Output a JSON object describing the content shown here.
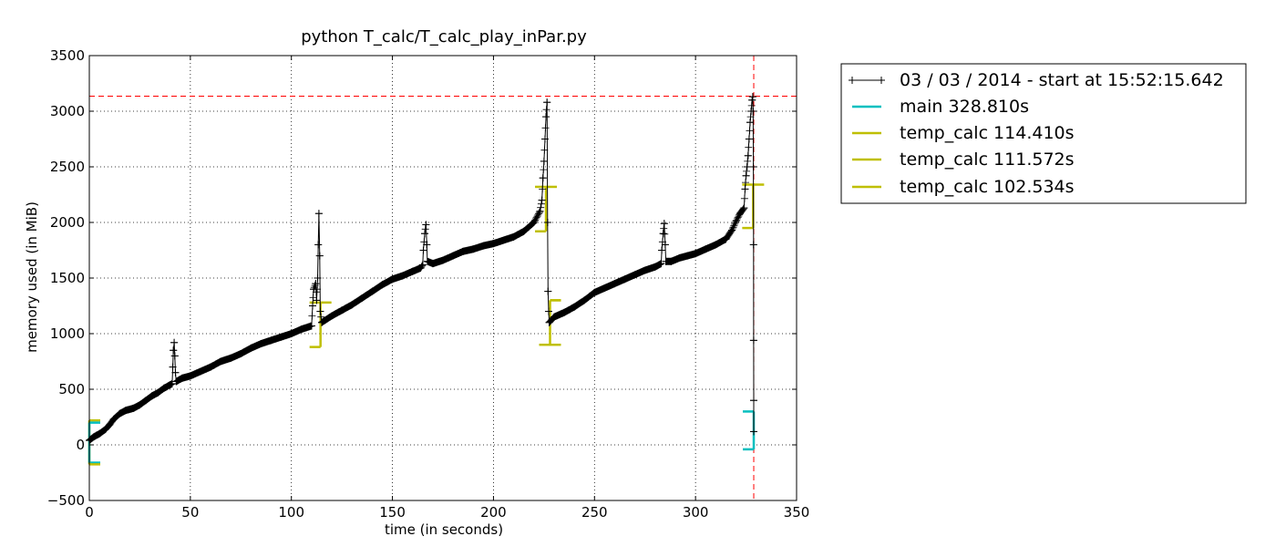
{
  "chart_data": {
    "type": "line",
    "title": "python T_calc/T_calc_play_inPar.py",
    "xlabel": "time (in seconds)",
    "ylabel": "memory used (in MiB)",
    "xlim": [
      0,
      350
    ],
    "ylim": [
      -500,
      3500
    ],
    "xticks": [
      0,
      50,
      100,
      150,
      200,
      250,
      300,
      350
    ],
    "xtick_labels": [
      "0",
      "50",
      "100",
      "150",
      "200",
      "250",
      "300",
      "350"
    ],
    "yticks": [
      -500,
      0,
      500,
      1000,
      1500,
      2000,
      2500,
      3000,
      3500
    ],
    "ytick_labels": [
      "−500",
      "0",
      "500",
      "1000",
      "1500",
      "2000",
      "2500",
      "3000",
      "3500"
    ],
    "grid": true,
    "legend_position": "outside-right-top",
    "colors": {
      "memory": "#000000",
      "main": "#00bfbf",
      "temp_calc": "#bfbf00",
      "peak": "#ff0000"
    },
    "series": [
      {
        "name": "03 / 03 / 2014 - start at 15:52:15.642",
        "marker": "+",
        "points": [
          [
            0,
            40
          ],
          [
            2,
            70
          ],
          [
            5,
            100
          ],
          [
            8,
            140
          ],
          [
            10,
            180
          ],
          [
            12,
            230
          ],
          [
            15,
            280
          ],
          [
            18,
            310
          ],
          [
            22,
            330
          ],
          [
            25,
            360
          ],
          [
            28,
            400
          ],
          [
            31,
            440
          ],
          [
            34,
            470
          ],
          [
            37,
            510
          ],
          [
            40,
            540
          ],
          [
            41,
            550
          ],
          [
            41.3,
            700
          ],
          [
            41.6,
            850
          ],
          [
            42,
            920
          ],
          [
            42.3,
            800
          ],
          [
            42.6,
            650
          ],
          [
            43,
            570
          ],
          [
            46,
            600
          ],
          [
            50,
            620
          ],
          [
            55,
            660
          ],
          [
            60,
            700
          ],
          [
            65,
            750
          ],
          [
            70,
            780
          ],
          [
            75,
            820
          ],
          [
            80,
            870
          ],
          [
            85,
            910
          ],
          [
            90,
            940
          ],
          [
            95,
            970
          ],
          [
            100,
            1000
          ],
          [
            105,
            1040
          ],
          [
            110,
            1070
          ],
          [
            110.5,
            1250
          ],
          [
            111,
            1400
          ],
          [
            112,
            1450
          ],
          [
            112.5,
            1300
          ],
          [
            113,
            1500
          ],
          [
            113.3,
            1800
          ],
          [
            113.6,
            2080
          ],
          [
            114,
            1700
          ],
          [
            114.3,
            1200
          ],
          [
            115,
            1100
          ],
          [
            120,
            1160
          ],
          [
            125,
            1210
          ],
          [
            130,
            1260
          ],
          [
            135,
            1320
          ],
          [
            140,
            1380
          ],
          [
            145,
            1440
          ],
          [
            150,
            1490
          ],
          [
            155,
            1520
          ],
          [
            160,
            1560
          ],
          [
            164,
            1590
          ],
          [
            165,
            1620
          ],
          [
            165.3,
            1750
          ],
          [
            166,
            1900
          ],
          [
            166.6,
            1980
          ],
          [
            167,
            1800
          ],
          [
            167.3,
            1650
          ],
          [
            170,
            1630
          ],
          [
            175,
            1660
          ],
          [
            180,
            1700
          ],
          [
            185,
            1740
          ],
          [
            190,
            1760
          ],
          [
            195,
            1790
          ],
          [
            200,
            1810
          ],
          [
            205,
            1840
          ],
          [
            210,
            1870
          ],
          [
            215,
            1920
          ],
          [
            220,
            2000
          ],
          [
            223,
            2100
          ],
          [
            224,
            2200
          ],
          [
            224.5,
            2400
          ],
          [
            225,
            2550
          ],
          [
            225.5,
            2750
          ],
          [
            226,
            2950
          ],
          [
            226.5,
            3080
          ],
          [
            226.8,
            2000
          ],
          [
            227,
            1380
          ],
          [
            227.3,
            1200
          ],
          [
            227.6,
            1100
          ],
          [
            230,
            1150
          ],
          [
            235,
            1190
          ],
          [
            240,
            1240
          ],
          [
            245,
            1300
          ],
          [
            250,
            1370
          ],
          [
            255,
            1410
          ],
          [
            260,
            1450
          ],
          [
            265,
            1490
          ],
          [
            270,
            1530
          ],
          [
            275,
            1570
          ],
          [
            280,
            1600
          ],
          [
            283,
            1630
          ],
          [
            283.3,
            1750
          ],
          [
            284,
            1900
          ],
          [
            284.5,
            1990
          ],
          [
            285,
            1800
          ],
          [
            285.3,
            1650
          ],
          [
            288,
            1650
          ],
          [
            292,
            1680
          ],
          [
            296,
            1700
          ],
          [
            300,
            1720
          ],
          [
            305,
            1760
          ],
          [
            310,
            1800
          ],
          [
            315,
            1850
          ],
          [
            318,
            1930
          ],
          [
            320,
            2010
          ],
          [
            322,
            2080
          ],
          [
            324,
            2130
          ],
          [
            324.5,
            2300
          ],
          [
            325,
            2420
          ],
          [
            325.5,
            2500
          ],
          [
            326,
            2600
          ],
          [
            326.5,
            2750
          ],
          [
            327,
            2900
          ],
          [
            327.5,
            3000
          ],
          [
            328,
            3100
          ],
          [
            328.3,
            3130
          ],
          [
            328.5,
            3000
          ],
          [
            328.6,
            2500
          ],
          [
            328.7,
            1800
          ],
          [
            328.75,
            940
          ],
          [
            328.8,
            400
          ],
          [
            328.81,
            120
          ]
        ]
      }
    ],
    "brackets": [
      {
        "name": "main 328.810s",
        "kind": "main",
        "x_start": 0,
        "x_end": 328.81,
        "y_start": 200,
        "y_end": -40
      },
      {
        "name": "temp_calc 114.410s",
        "kind": "temp_calc",
        "x_start": 0,
        "x_end": 114.41,
        "y_start": 220,
        "y_end": 880
      },
      {
        "name": "temp_calc 111.572s",
        "kind": "temp_calc",
        "x_start": 114.41,
        "x_end": 225.982,
        "y_start": 1280,
        "y_end": 1920
      },
      {
        "name": "temp_calc 102.534s",
        "kind": "temp_calc",
        "x_start": 225.982,
        "x_end": 328.516,
        "y_start": 1300,
        "y_end": 1950
      }
    ],
    "bracket_start_variants": [
      {
        "kind": "main",
        "x": 0,
        "y": -160
      },
      {
        "kind": "temp_calc",
        "x": 0,
        "y": -175
      },
      {
        "kind": "temp_calc",
        "x": 114.41,
        "y": 1280
      },
      {
        "kind": "temp_calc",
        "x": 225.982,
        "y": 2320
      },
      {
        "kind": "temp_calc",
        "x": 228,
        "y": 1300
      },
      {
        "kind": "temp_calc",
        "x": 328.516,
        "y": 2340
      }
    ],
    "bracket_end_variants": [
      {
        "kind": "temp_calc",
        "x": 114.41,
        "y": 880
      },
      {
        "kind": "temp_calc",
        "x": 225.982,
        "y": 1920
      },
      {
        "kind": "temp_calc",
        "x": 228,
        "y": 900
      },
      {
        "kind": "temp_calc",
        "x": 328.516,
        "y": 1950
      },
      {
        "kind": "main",
        "x": 328.81,
        "y": 300
      },
      {
        "kind": "main",
        "x": 328.81,
        "y": -40
      }
    ],
    "peak": {
      "x": 328.81,
      "y": 3135
    },
    "legend": [
      {
        "label": "03 / 03 / 2014 - start at 15:52:15.642",
        "kind": "memory"
      },
      {
        "label": "main 328.810s",
        "kind": "main"
      },
      {
        "label": "temp_calc 114.410s",
        "kind": "temp_calc"
      },
      {
        "label": "temp_calc 111.572s",
        "kind": "temp_calc"
      },
      {
        "label": "temp_calc 102.534s",
        "kind": "temp_calc"
      }
    ]
  }
}
